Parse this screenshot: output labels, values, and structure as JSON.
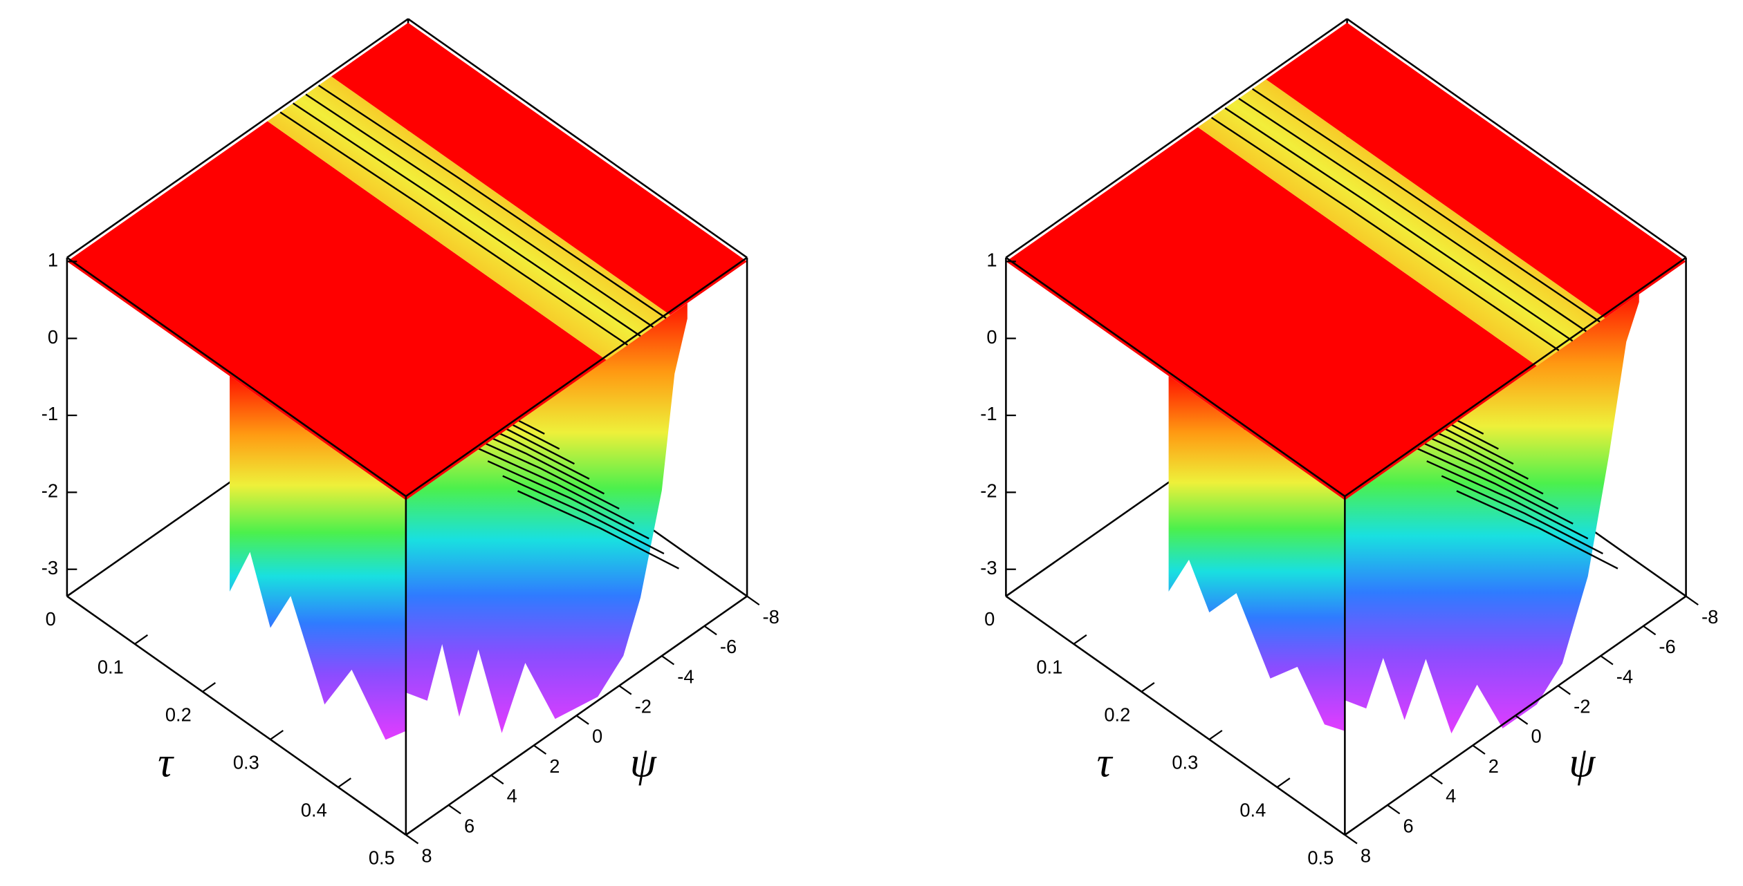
{
  "chart_data": [
    {
      "type": "surface",
      "x_label": "τ",
      "y_label": "ψ",
      "xlim": [
        0,
        0.5
      ],
      "xticks": [
        0,
        0.1,
        0.2,
        0.3,
        0.4,
        0.5
      ],
      "ylim": [
        -8,
        8
      ],
      "yticks": [
        -8,
        -6,
        -4,
        -2,
        0,
        2,
        4,
        6,
        8
      ],
      "zlim": [
        -3.35,
        1.05
      ],
      "zticks": [
        1,
        0,
        -1,
        -2,
        -3
      ]
    },
    {
      "type": "surface",
      "x_label": "τ",
      "y_label": "ψ",
      "xlim": [
        0,
        0.5
      ],
      "xticks": [
        0,
        0.1,
        0.2,
        0.3,
        0.4,
        0.5
      ],
      "ylim": [
        -8,
        8
      ],
      "yticks": [
        -8,
        -6,
        -4,
        -2,
        0,
        2,
        4,
        6,
        8
      ],
      "zlim": [
        -3.35,
        1.05
      ],
      "zticks": [
        1,
        0,
        -1,
        -2,
        -3
      ]
    }
  ]
}
